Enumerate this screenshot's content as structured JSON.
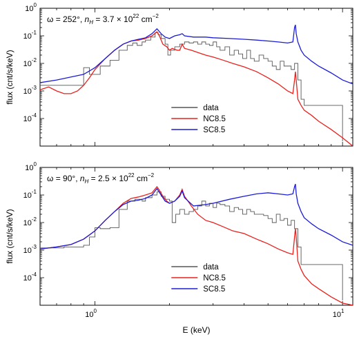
{
  "chart_data": [
    {
      "type": "line",
      "annotation": {
        "prefix": "ω = 252°, ",
        "nh_text": "n",
        "nh_sub": "H",
        "eq": " = 3.7 × 10",
        "exp": "22",
        "unit": " cm",
        "unit_exp": "−2"
      },
      "xlabel": "",
      "ylabel": "flux (cnt/s/keV)",
      "xscale": "log",
      "yscale": "log",
      "xlim": [
        0.6,
        11
      ],
      "ylim": [
        1e-05,
        1
      ],
      "y_ticks": [
        {
          "base": "10",
          "exp": "-4",
          "v": 0.0001
        },
        {
          "base": "10",
          "exp": "-3",
          "v": 0.001
        },
        {
          "base": "10",
          "exp": "-2",
          "v": 0.01
        },
        {
          "base": "10",
          "exp": "-1",
          "v": 0.1
        },
        {
          "base": "10",
          "exp": "0",
          "v": 1
        }
      ],
      "x_ticks": [],
      "legend": {
        "placement": "lower-center",
        "entries": [
          "data",
          "NC8.5",
          "SC8.5"
        ]
      },
      "series": [
        {
          "name": "data",
          "color": "#555555",
          "step": true,
          "x": [
            0.6,
            0.9,
            0.95,
            1.05,
            1.15,
            1.25,
            1.35,
            1.42,
            1.48,
            1.55,
            1.6,
            1.68,
            1.75,
            1.8,
            1.85,
            1.92,
            1.97,
            2.02,
            2.1,
            2.2,
            2.3,
            2.4,
            2.5,
            2.6,
            2.7,
            2.8,
            2.9,
            3.0,
            3.1,
            3.2,
            3.35,
            3.5,
            3.65,
            3.8,
            3.95,
            4.1,
            4.25,
            4.4,
            4.6,
            4.8,
            5.0,
            5.2,
            5.4,
            5.6,
            5.8,
            6.0,
            6.2,
            6.4,
            6.6,
            6.8,
            7.0,
            10.0
          ],
          "y": [
            0.0016,
            0.007,
            0.004,
            0.008,
            0.013,
            0.03,
            0.045,
            0.055,
            0.045,
            0.06,
            0.07,
            0.09,
            0.13,
            0.11,
            0.08,
            0.05,
            0.02,
            0.03,
            0.04,
            0.05,
            0.06,
            0.055,
            0.06,
            0.05,
            0.06,
            0.05,
            0.045,
            0.06,
            0.04,
            0.03,
            0.04,
            0.02,
            0.03,
            0.022,
            0.015,
            0.03,
            0.015,
            0.012,
            0.02,
            0.015,
            0.012,
            0.008,
            0.006,
            0.012,
            0.008,
            0.008,
            0.006,
            0.01,
            0.0025,
            0.0005,
            0.0003,
            1.5e-05
          ]
        },
        {
          "name": "NC8.5",
          "color": "#e8201c",
          "step": false,
          "x": [
            0.6,
            0.65,
            0.7,
            0.75,
            0.8,
            0.85,
            0.9,
            0.95,
            1.0,
            1.1,
            1.2,
            1.3,
            1.4,
            1.5,
            1.6,
            1.7,
            1.78,
            1.82,
            1.88,
            1.95,
            2.0,
            2.05,
            2.15,
            2.2,
            2.25,
            2.3,
            2.45,
            2.6,
            2.8,
            3.0,
            3.3,
            3.6,
            4.0,
            4.5,
            5.0,
            5.5,
            6.0,
            6.3,
            6.4,
            6.45,
            6.5,
            6.6,
            6.8,
            7.0,
            7.5,
            8.0,
            9.0,
            10.0,
            11.0
          ],
          "y": [
            0.0011,
            0.0014,
            0.001,
            0.0008,
            0.0008,
            0.001,
            0.0016,
            0.003,
            0.006,
            0.015,
            0.03,
            0.05,
            0.065,
            0.07,
            0.08,
            0.1,
            0.14,
            0.1,
            0.05,
            0.04,
            0.03,
            0.035,
            0.03,
            0.03,
            0.05,
            0.035,
            0.03,
            0.025,
            0.02,
            0.017,
            0.013,
            0.01,
            0.0075,
            0.005,
            0.003,
            0.0018,
            0.001,
            0.0008,
            0.0025,
            0.005,
            0.0025,
            0.0005,
            0.0003,
            0.0002,
            0.00013,
            8e-05,
            4e-05,
            2e-05,
            1e-05
          ]
        },
        {
          "name": "SC8.5",
          "color": "#1a1ad8",
          "step": false,
          "x": [
            0.6,
            0.7,
            0.8,
            0.9,
            1.0,
            1.1,
            1.2,
            1.3,
            1.4,
            1.5,
            1.6,
            1.7,
            1.78,
            1.85,
            1.92,
            2.0,
            2.1,
            2.2,
            2.25,
            2.3,
            2.5,
            2.8,
            3.0,
            3.5,
            4.0,
            4.5,
            5.0,
            5.5,
            6.0,
            6.3,
            6.4,
            6.45,
            6.5,
            6.6,
            6.8,
            7.0,
            7.5,
            8.0,
            9.0,
            10.0,
            11.0
          ],
          "y": [
            0.002,
            0.0025,
            0.0032,
            0.004,
            0.007,
            0.015,
            0.03,
            0.05,
            0.065,
            0.075,
            0.085,
            0.12,
            0.18,
            0.12,
            0.09,
            0.08,
            0.1,
            0.11,
            0.12,
            0.1,
            0.09,
            0.09,
            0.085,
            0.08,
            0.075,
            0.07,
            0.065,
            0.06,
            0.055,
            0.06,
            0.2,
            0.25,
            0.12,
            0.06,
            0.03,
            0.02,
            0.012,
            0.008,
            0.0045,
            0.0025,
            0.0018
          ]
        }
      ]
    },
    {
      "type": "line",
      "annotation": {
        "prefix": "ω = 90°, ",
        "nh_text": "n",
        "nh_sub": "H",
        "eq": " = 2.5 × 10",
        "exp": "22",
        "unit": " cm",
        "unit_exp": "−2"
      },
      "xlabel": "E (keV)",
      "ylabel": "flux (cnt/s/keV)",
      "xscale": "log",
      "yscale": "log",
      "xlim": [
        0.6,
        11
      ],
      "ylim": [
        1e-05,
        1
      ],
      "y_ticks": [
        {
          "base": "10",
          "exp": "-4",
          "v": 0.0001
        },
        {
          "base": "10",
          "exp": "-3",
          "v": 0.001
        },
        {
          "base": "10",
          "exp": "-2",
          "v": 0.01
        },
        {
          "base": "10",
          "exp": "-1",
          "v": 0.1
        },
        {
          "base": "10",
          "exp": "0",
          "v": 1
        }
      ],
      "x_ticks": [
        {
          "base": "10",
          "exp": "0",
          "v": 1
        },
        {
          "base": "10",
          "exp": "1",
          "v": 10
        }
      ],
      "legend": {
        "placement": "lower-center",
        "entries": [
          "data",
          "NC8.5",
          "SC8.5"
        ]
      },
      "series": [
        {
          "name": "data",
          "color": "#555555",
          "step": true,
          "x": [
            0.6,
            0.75,
            0.9,
            0.95,
            1.0,
            1.05,
            1.15,
            1.25,
            1.35,
            1.45,
            1.55,
            1.6,
            1.7,
            1.78,
            1.85,
            1.92,
            2.0,
            2.05,
            2.12,
            2.2,
            2.3,
            2.4,
            2.5,
            2.6,
            2.7,
            2.8,
            2.9,
            3.0,
            3.1,
            3.2,
            3.35,
            3.5,
            3.65,
            3.8,
            3.95,
            4.1,
            4.25,
            4.4,
            4.6,
            4.8,
            5.0,
            5.2,
            5.4,
            5.6,
            5.8,
            6.0,
            6.2,
            6.4,
            6.6,
            6.8,
            7.0,
            10.0
          ],
          "y": [
            0.0012,
            0.0013,
            0.0015,
            0.003,
            0.0065,
            0.006,
            0.0065,
            0.03,
            0.06,
            0.07,
            0.06,
            0.08,
            0.1,
            0.13,
            0.09,
            0.07,
            0.06,
            0.01,
            0.02,
            0.03,
            0.02,
            0.025,
            0.03,
            0.04,
            0.06,
            0.04,
            0.05,
            0.035,
            0.05,
            0.045,
            0.04,
            0.025,
            0.035,
            0.03,
            0.02,
            0.03,
            0.025,
            0.02,
            0.02,
            0.018,
            0.014,
            0.01,
            0.02,
            0.012,
            0.014,
            0.008,
            0.012,
            0.006,
            0.0013,
            0.0003,
            0.0003,
            1.5e-05
          ]
        },
        {
          "name": "NC8.5",
          "color": "#e8201c",
          "step": false,
          "x": [
            0.6,
            0.7,
            0.8,
            0.9,
            1.0,
            1.1,
            1.2,
            1.3,
            1.4,
            1.5,
            1.6,
            1.7,
            1.78,
            1.82,
            1.88,
            1.95,
            2.0,
            2.1,
            2.2,
            2.25,
            2.3,
            2.45,
            2.6,
            2.8,
            3.0,
            3.3,
            3.6,
            4.0,
            4.5,
            5.0,
            5.5,
            6.0,
            6.3,
            6.4,
            6.45,
            6.5,
            6.6,
            6.8,
            7.0,
            7.5,
            8.0,
            9.0,
            10.0,
            11.0
          ],
          "y": [
            0.0011,
            0.0013,
            0.0016,
            0.0025,
            0.005,
            0.012,
            0.025,
            0.05,
            0.075,
            0.085,
            0.1,
            0.12,
            0.2,
            0.15,
            0.09,
            0.06,
            0.05,
            0.06,
            0.1,
            0.16,
            0.09,
            0.04,
            0.02,
            0.012,
            0.01,
            0.007,
            0.005,
            0.004,
            0.0025,
            0.0017,
            0.0011,
            0.0008,
            0.0007,
            0.003,
            0.006,
            0.003,
            0.0004,
            0.0002,
            0.00012,
            6e-05,
            4e-05,
            2e-05,
            1.2e-05,
            1e-05
          ]
        },
        {
          "name": "SC8.5",
          "color": "#1a1ad8",
          "step": false,
          "x": [
            0.6,
            0.7,
            0.8,
            0.9,
            1.0,
            1.1,
            1.2,
            1.3,
            1.4,
            1.5,
            1.6,
            1.7,
            1.78,
            1.85,
            1.92,
            2.0,
            2.1,
            2.2,
            2.25,
            2.3,
            2.5,
            2.8,
            3.0,
            3.5,
            4.0,
            4.5,
            5.0,
            5.5,
            6.0,
            6.3,
            6.4,
            6.45,
            6.5,
            6.6,
            6.8,
            7.0,
            7.5,
            8.0,
            9.0,
            10.0,
            11.0
          ],
          "y": [
            0.0011,
            0.0013,
            0.0016,
            0.0025,
            0.005,
            0.012,
            0.025,
            0.045,
            0.06,
            0.065,
            0.075,
            0.1,
            0.17,
            0.1,
            0.06,
            0.05,
            0.06,
            0.09,
            0.14,
            0.08,
            0.04,
            0.045,
            0.05,
            0.07,
            0.09,
            0.11,
            0.12,
            0.11,
            0.1,
            0.11,
            0.2,
            0.25,
            0.11,
            0.05,
            0.025,
            0.015,
            0.009,
            0.006,
            0.0035,
            0.002,
            0.0015
          ]
        }
      ]
    }
  ]
}
